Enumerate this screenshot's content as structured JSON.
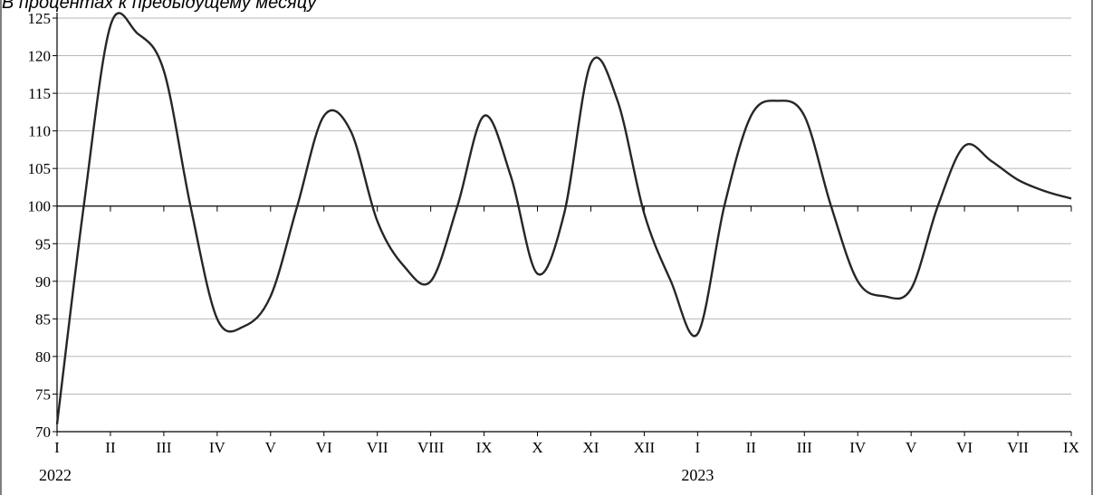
{
  "subtitle": "В процентах к предыдущему месяцу",
  "chart_data": {
    "type": "line",
    "title": "В процентах к предыдущему месяцу",
    "xlabel": "",
    "ylabel": "",
    "ylim": [
      70,
      125
    ],
    "yticks": [
      70,
      75,
      80,
      85,
      90,
      95,
      100,
      105,
      110,
      115,
      120,
      125
    ],
    "baseline": 100,
    "grid": true,
    "legend": "none",
    "categories": [
      "I",
      "II",
      "III",
      "IV",
      "V",
      "VI",
      "VII",
      "VIII",
      "IX",
      "X",
      "XI",
      "XII",
      "I",
      "II",
      "III",
      "IV",
      "V",
      "VI",
      "VII",
      "IX"
    ],
    "year_labels": [
      {
        "label": "2022",
        "at_index": 0
      },
      {
        "label": "2023",
        "at_index": 12
      }
    ],
    "series": [
      {
        "color": "#262626",
        "x": [
          0,
          0.5,
          1,
          1.5,
          2,
          2.5,
          3,
          3.5,
          4,
          4.5,
          5,
          5.5,
          6,
          6.5,
          7,
          7.5,
          8,
          8.5,
          9,
          9.5,
          10,
          10.5,
          11,
          11.5,
          12,
          12.5,
          13,
          13.5,
          14,
          14.5,
          15,
          15.5,
          16,
          16.5,
          17,
          17.5,
          18,
          18.5,
          19
        ],
        "values": [
          71,
          100,
          124,
          123,
          118,
          100,
          85,
          84,
          88,
          100,
          112,
          110,
          98,
          92,
          90,
          100,
          112,
          104,
          91,
          99,
          119,
          114,
          99,
          90,
          83,
          100,
          112,
          114,
          112,
          100,
          90,
          88,
          89,
          100,
          108,
          106,
          103.5,
          102,
          101
        ]
      }
    ]
  }
}
